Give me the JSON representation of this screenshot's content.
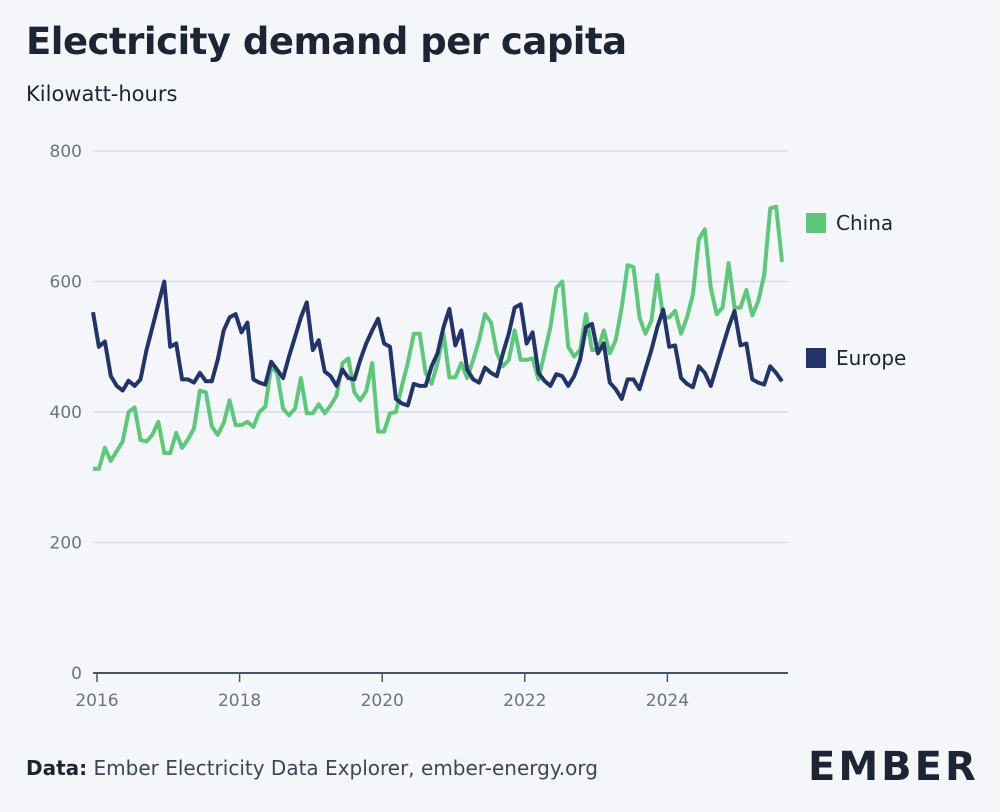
{
  "header": {
    "title": "Electricity demand per capita",
    "subtitle": "Kilowatt-hours"
  },
  "footer": {
    "source_label": "Data:",
    "source_text": "Ember Electricity Data Explorer, ember-energy.org",
    "logo": "EMBER"
  },
  "chart_data": {
    "type": "line",
    "title": "Electricity demand per capita",
    "ylabel": "Kilowatt-hours",
    "xlabel": "",
    "ylim": [
      0,
      800
    ],
    "yticks": [
      0,
      200,
      400,
      600,
      800
    ],
    "xticks": [
      "2016",
      "2018",
      "2020",
      "2022",
      "2024"
    ],
    "x_start": "2016-01",
    "x_frequency": "monthly",
    "grid": true,
    "legend_placement": "right",
    "series": [
      {
        "name": "China",
        "color": "#5cc97a",
        "values": [
          313,
          313,
          345,
          325,
          340,
          355,
          400,
          407,
          357,
          355,
          365,
          385,
          337,
          337,
          368,
          345,
          358,
          375,
          433,
          430,
          378,
          365,
          383,
          418,
          380,
          380,
          385,
          377,
          400,
          408,
          470,
          460,
          405,
          395,
          405,
          452,
          398,
          398,
          412,
          398,
          410,
          425,
          475,
          482,
          430,
          418,
          432,
          475,
          370,
          370,
          398,
          400,
          440,
          475,
          520,
          520,
          460,
          443,
          475,
          520,
          453,
          453,
          475,
          452,
          480,
          510,
          550,
          537,
          490,
          470,
          480,
          525,
          480,
          480,
          482,
          450,
          490,
          530,
          590,
          600,
          500,
          485,
          495,
          550,
          495,
          495,
          525,
          490,
          510,
          560,
          625,
          622,
          545,
          520,
          540,
          610,
          545,
          545,
          555,
          520,
          545,
          580,
          665,
          680,
          590,
          550,
          560,
          628,
          560,
          560,
          587,
          548,
          570,
          610,
          712,
          715,
          630
        ]
      },
      {
        "name": "Europe",
        "color": "#23346b",
        "values": [
          553,
          500,
          508,
          455,
          440,
          433,
          448,
          440,
          450,
          495,
          530,
          565,
          600,
          500,
          505,
          450,
          450,
          445,
          460,
          447,
          447,
          480,
          525,
          545,
          550,
          522,
          537,
          450,
          445,
          442,
          477,
          465,
          452,
          485,
          515,
          545,
          568,
          495,
          510,
          462,
          455,
          440,
          465,
          452,
          450,
          480,
          505,
          525,
          543,
          505,
          500,
          420,
          413,
          410,
          443,
          440,
          440,
          470,
          490,
          530,
          558,
          502,
          525,
          465,
          450,
          445,
          468,
          460,
          455,
          490,
          520,
          560,
          565,
          505,
          522,
          460,
          448,
          440,
          458,
          455,
          440,
          455,
          480,
          530,
          535,
          490,
          505,
          445,
          435,
          420,
          450,
          450,
          435,
          465,
          495,
          530,
          557,
          500,
          502,
          452,
          443,
          438,
          470,
          460,
          440,
          470,
          500,
          530,
          555,
          502,
          505,
          450,
          445,
          442,
          470,
          460,
          447
        ]
      }
    ]
  }
}
